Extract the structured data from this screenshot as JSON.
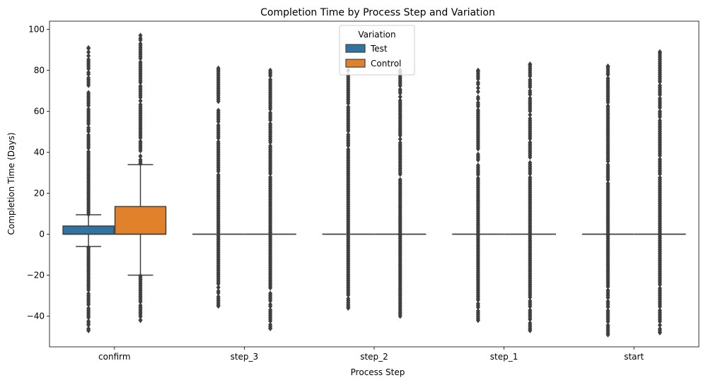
{
  "chart_data": {
    "type": "box",
    "title": "Completion Time by Process Step and Variation",
    "xlabel": "Process Step",
    "ylabel": "Completion Time (Days)",
    "ylim": [
      -55,
      104
    ],
    "yticks": [
      -40,
      -20,
      0,
      20,
      40,
      60,
      80,
      100
    ],
    "categories": [
      "confirm",
      "step_3",
      "step_2",
      "step_1",
      "start"
    ],
    "legend": {
      "title": "Variation",
      "position": "top-center"
    },
    "series": [
      {
        "name": "Test",
        "color": "#3274a1",
        "boxes": [
          {
            "category": "confirm",
            "q1": 0,
            "median": 0,
            "q3": 4,
            "whisker_low": -6,
            "whisker_high": 9.5,
            "outlier_min": -47,
            "outlier_max": 91
          },
          {
            "category": "step_3",
            "q1": 0,
            "median": 0,
            "q3": 0,
            "whisker_low": 0,
            "whisker_high": 0,
            "outlier_min": -35,
            "outlier_max": 81
          },
          {
            "category": "step_2",
            "q1": 0,
            "median": 0,
            "q3": 0,
            "whisker_low": 0,
            "whisker_high": 0,
            "outlier_min": -36,
            "outlier_max": 80
          },
          {
            "category": "step_1",
            "q1": 0,
            "median": 0,
            "q3": 0,
            "whisker_low": 0,
            "whisker_high": 0,
            "outlier_min": -42,
            "outlier_max": 80
          },
          {
            "category": "start",
            "q1": 0,
            "median": 0,
            "q3": 0,
            "whisker_low": 0,
            "whisker_high": 0,
            "outlier_min": -49,
            "outlier_max": 82
          }
        ]
      },
      {
        "name": "Control",
        "color": "#e1812c",
        "boxes": [
          {
            "category": "confirm",
            "q1": 0,
            "median": 0,
            "q3": 13.5,
            "whisker_low": -20,
            "whisker_high": 34,
            "outlier_min": -42,
            "outlier_max": 97
          },
          {
            "category": "step_3",
            "q1": 0,
            "median": 0,
            "q3": 0,
            "whisker_low": 0,
            "whisker_high": 0,
            "outlier_min": -46,
            "outlier_max": 80
          },
          {
            "category": "step_2",
            "q1": 0,
            "median": 0,
            "q3": 0,
            "whisker_low": 0,
            "whisker_high": 0,
            "outlier_min": -40,
            "outlier_max": 80
          },
          {
            "category": "step_1",
            "q1": 0,
            "median": 0,
            "q3": 0,
            "whisker_low": 0,
            "whisker_high": 0,
            "outlier_min": -47,
            "outlier_max": 83
          },
          {
            "category": "start",
            "q1": 0,
            "median": 0,
            "q3": 0,
            "whisker_low": 0,
            "whisker_high": 0,
            "outlier_min": -48,
            "outlier_max": 89
          }
        ]
      }
    ]
  }
}
